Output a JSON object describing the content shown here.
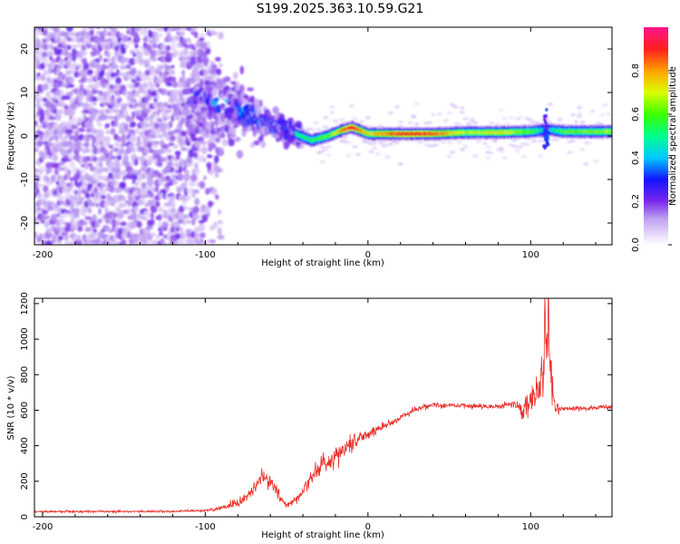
{
  "title": "S199.2025.363.10.59.G21",
  "colors": {
    "snr_line": "#e8302a",
    "background": "#ffffff",
    "axis": "#000000"
  },
  "chart_data": [
    {
      "type": "heatmap",
      "xlabel": "Height of straight line (km)",
      "ylabel": "Frequency (Hz)",
      "xlim": [
        -205,
        150
      ],
      "ylim": [
        -25,
        25
      ],
      "x_ticks": [
        -200,
        -100,
        0,
        100
      ],
      "x_tick_labels": [
        "-200",
        "-100",
        "0",
        "100"
      ],
      "y_ticks": [
        -20,
        -10,
        0,
        10,
        20
      ],
      "y_tick_labels": [
        "-20",
        "-10",
        "0",
        "10",
        "20"
      ],
      "colorbar": {
        "label": "Normalized spectral amplitude",
        "range": [
          0,
          1
        ],
        "ticks": [
          0,
          0.2,
          0.4,
          0.6,
          0.8
        ],
        "tick_labels": [
          "0.0",
          "0.2",
          "0.4",
          "0.6",
          "0.8"
        ]
      },
      "description_points": {
        "ridge_x": [
          -105,
          -90,
          -75,
          -60,
          -45,
          -35,
          -25,
          -15,
          -10,
          0,
          20,
          40,
          60,
          80,
          100,
          110,
          120,
          150
        ],
        "ridge_freq": [
          9,
          7,
          5,
          3,
          0.5,
          -1,
          0,
          1.5,
          2,
          0.5,
          0.5,
          0.5,
          0.8,
          0.8,
          1,
          1.5,
          1,
          1
        ],
        "ridge_amplitude": [
          0.35,
          0.4,
          0.45,
          0.4,
          0.5,
          0.55,
          0.6,
          0.85,
          0.9,
          0.7,
          0.9,
          0.85,
          0.65,
          0.7,
          0.6,
          0.4,
          0.6,
          0.65
        ]
      }
    },
    {
      "type": "line",
      "xlabel": "Height of straight line (km)",
      "ylabel": "SNR (10 * v/v)",
      "xlim": [
        -205,
        150
      ],
      "ylim": [
        0,
        1230
      ],
      "x_ticks": [
        -200,
        -100,
        0,
        100
      ],
      "x_tick_labels": [
        "-200",
        "-100",
        "0",
        "100"
      ],
      "y_ticks": [
        0,
        200,
        400,
        600,
        800,
        1000,
        1200
      ],
      "y_tick_labels": [
        "0",
        "200",
        "400",
        "600",
        "800",
        "1000",
        "1200"
      ],
      "series": [
        {
          "name": "SNR",
          "x": [
            -205,
            -180,
            -150,
            -120,
            -100,
            -90,
            -80,
            -70,
            -65,
            -60,
            -55,
            -50,
            -45,
            -40,
            -35,
            -30,
            -20,
            -10,
            0,
            10,
            20,
            30,
            40,
            60,
            80,
            90,
            95,
            100,
            105,
            108,
            110,
            112,
            115,
            120,
            150
          ],
          "values": [
            30,
            30,
            30,
            30,
            35,
            50,
            80,
            150,
            230,
            200,
            130,
            60,
            90,
            150,
            220,
            280,
            340,
            420,
            470,
            510,
            560,
            610,
            630,
            625,
            620,
            640,
            600,
            650,
            700,
            900,
            1150,
            800,
            600,
            610,
            615
          ],
          "noise_amplitude": [
            8,
            8,
            8,
            8,
            10,
            20,
            40,
            60,
            80,
            80,
            50,
            30,
            40,
            60,
            60,
            70,
            80,
            70,
            60,
            40,
            30,
            25,
            20,
            20,
            25,
            30,
            60,
            100,
            200,
            300,
            350,
            300,
            60,
            20,
            20
          ]
        }
      ]
    }
  ]
}
